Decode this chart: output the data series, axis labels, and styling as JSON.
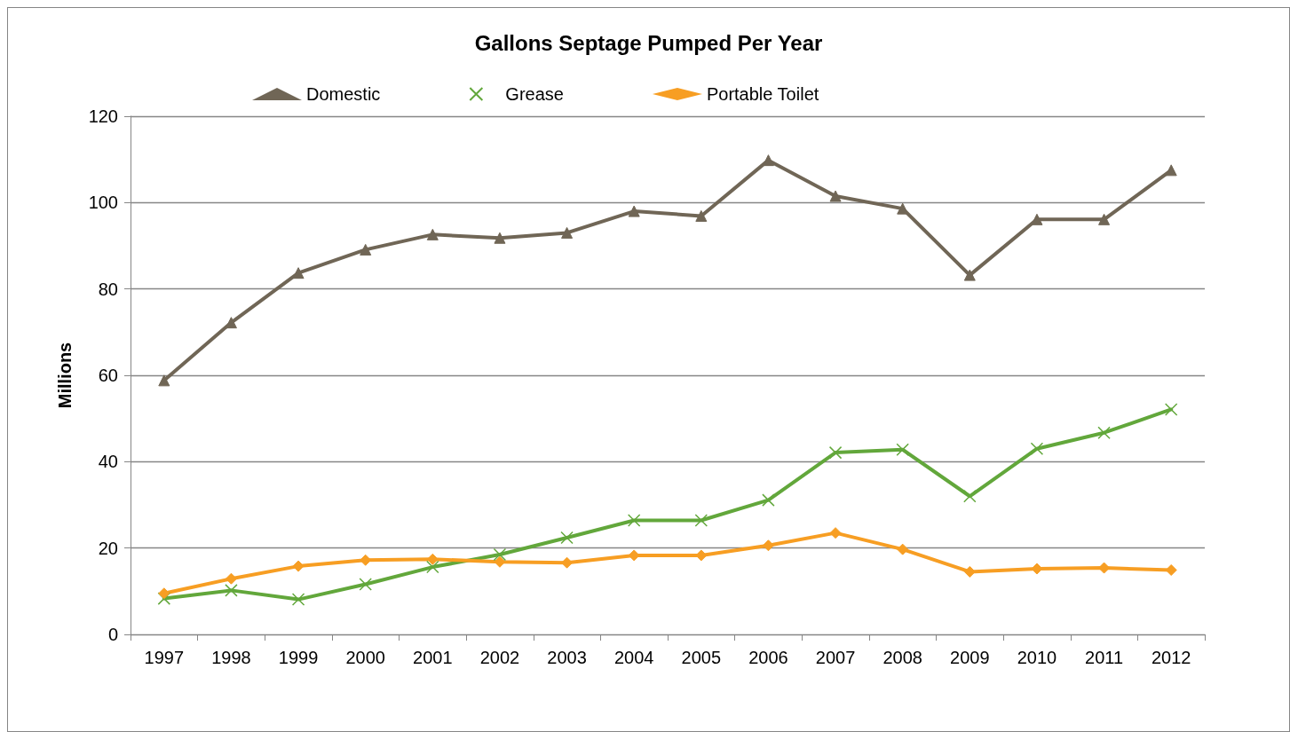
{
  "chart_data": {
    "type": "line",
    "title": "Gallons Septage Pumped Per Year",
    "ylabel": "Millions",
    "categories": [
      "1997",
      "1998",
      "1999",
      "2000",
      "2001",
      "2002",
      "2003",
      "2004",
      "2005",
      "2006",
      "2007",
      "2008",
      "2009",
      "2010",
      "2011",
      "2012"
    ],
    "series": [
      {
        "name": "Domestic",
        "color": "#706656",
        "marker": "triangle",
        "values": [
          58.8,
          72.2,
          83.7,
          89.1,
          92.6,
          91.8,
          93.0,
          98.0,
          96.9,
          109.8,
          101.5,
          98.6,
          83.2,
          96.1,
          96.1,
          107.5
        ]
      },
      {
        "name": "Grease",
        "color": "#62a73b",
        "marker": "cross",
        "values": [
          8.3,
          10.2,
          8.1,
          11.6,
          15.6,
          18.5,
          22.4,
          26.4,
          26.4,
          31.1,
          42.1,
          42.8,
          32.0,
          43.0,
          46.7,
          52.1
        ]
      },
      {
        "name": "Portable Toilet",
        "color": "#f79e23",
        "marker": "diamond",
        "values": [
          9.5,
          12.9,
          15.8,
          17.2,
          17.4,
          16.8,
          16.6,
          18.3,
          18.3,
          20.6,
          23.5,
          19.7,
          14.5,
          15.2,
          15.4,
          14.9
        ]
      }
    ],
    "ylim": [
      0,
      120
    ],
    "yticks": [
      0,
      20,
      40,
      60,
      80,
      100,
      120
    ],
    "grid": "y",
    "legend": "top",
    "line_style": "solid"
  }
}
